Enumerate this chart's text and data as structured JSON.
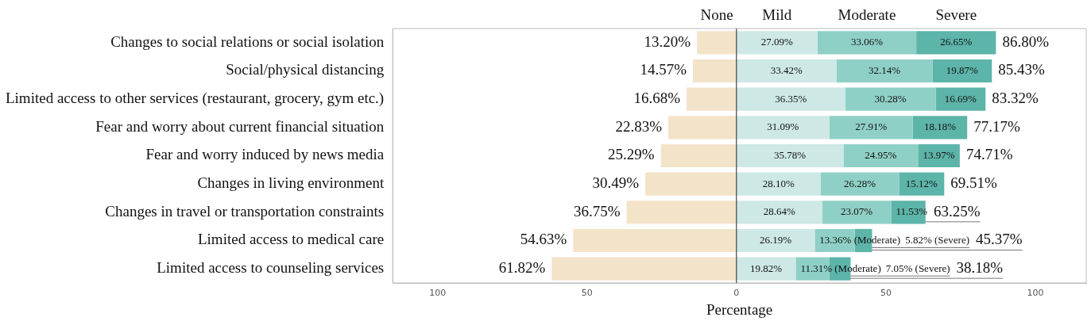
{
  "chart_data": {
    "type": "bar",
    "orientation": "horizontal",
    "stacked": true,
    "xlabel": "Percentage",
    "categories": [
      "Changes to social relations or social isolation",
      "Social/physical distancing",
      "Limited access to other services (restaurant, grocery, gym etc.)",
      "Fear and worry about current financial situation",
      "Fear and worry induced by news media",
      "Changes in living environment",
      "Changes in travel or transportation constraints",
      "Limited access to medical care",
      "Limited access to counseling services"
    ],
    "series": [
      {
        "name": "None",
        "color": "#f3e3c9",
        "values": [
          13.2,
          14.57,
          16.68,
          22.83,
          25.29,
          30.49,
          36.75,
          54.63,
          61.82
        ],
        "base": [
          -13.2,
          -14.57,
          -16.68,
          -22.83,
          -25.29,
          -30.49,
          -36.75,
          -54.63,
          -61.82
        ],
        "value_labels": [
          "13.20%",
          "14.57%",
          "16.68%",
          "22.83%",
          "25.29%",
          "30.49%",
          "36.75%",
          "54.63%",
          "61.82%"
        ]
      },
      {
        "name": "Mild",
        "color": "#cde8e5",
        "values": [
          27.09,
          33.42,
          36.35,
          31.09,
          35.78,
          28.1,
          28.64,
          26.19,
          19.82
        ],
        "value_labels": [
          "27.09%",
          "33.42%",
          "36.35%",
          "31.09%",
          "35.78%",
          "28.10%",
          "28.64%",
          "26.19%",
          "19.82%"
        ]
      },
      {
        "name": "Moderate",
        "color": "#8fd0c6",
        "values": [
          33.06,
          32.14,
          30.28,
          27.91,
          24.95,
          26.28,
          23.07,
          13.36,
          11.31
        ],
        "value_labels": [
          "33.06%",
          "32.14%",
          "30.28%",
          "27.91%",
          "24.95%",
          "26.28%",
          "23.07%",
          "13.36% (Moderate)",
          "11.31% (Moderate)"
        ]
      },
      {
        "name": "Severe",
        "color": "#5db4a9",
        "values": [
          26.65,
          19.87,
          16.69,
          18.18,
          13.97,
          15.12,
          11.53,
          5.82,
          7.05
        ],
        "value_labels": [
          "26.65%",
          "19.87%",
          "16.69%",
          "18.18%",
          "13.97%",
          "15.12%",
          "11.53%",
          "5.82% (Severe)",
          "7.05% (Severe)"
        ]
      }
    ],
    "annotations": [
      {
        "text": "86.80%",
        "x": 86.8,
        "y": "Changes to social relations or social isolation"
      },
      {
        "text": "85.43%",
        "x": 85.43,
        "y": "Social/physical distancing"
      },
      {
        "text": "83.32%",
        "x": 83.32,
        "y": "Limited access to other services (restaurant, grocery, gym etc.)"
      },
      {
        "text": "77.17%",
        "x": 77.17,
        "y": "Fear and worry about current financial situation"
      },
      {
        "text": "74.71%",
        "x": 74.71,
        "y": "Fear and worry induced by news media"
      },
      {
        "text": "69.51%",
        "x": 69.51,
        "y": "Changes in living environment"
      },
      {
        "text": "63.25%",
        "x": 63.25,
        "y": "Changes in travel or transportation constraints"
      },
      {
        "text": "45.37%",
        "x": 45.37,
        "y": "Limited access to medical care"
      },
      {
        "text": "38.18%",
        "x": 38.18,
        "y": "Limited access to counseling services"
      }
    ],
    "xlim": [
      -115,
      117
    ],
    "xticks": [
      {
        "value": -100,
        "label": "100"
      },
      {
        "value": -50,
        "label": "50"
      },
      0,
      50,
      100
    ],
    "ref_lines": [
      {
        "axis": "x",
        "value": 0,
        "color": "#222222"
      }
    ],
    "grid": false,
    "legend": false
  }
}
